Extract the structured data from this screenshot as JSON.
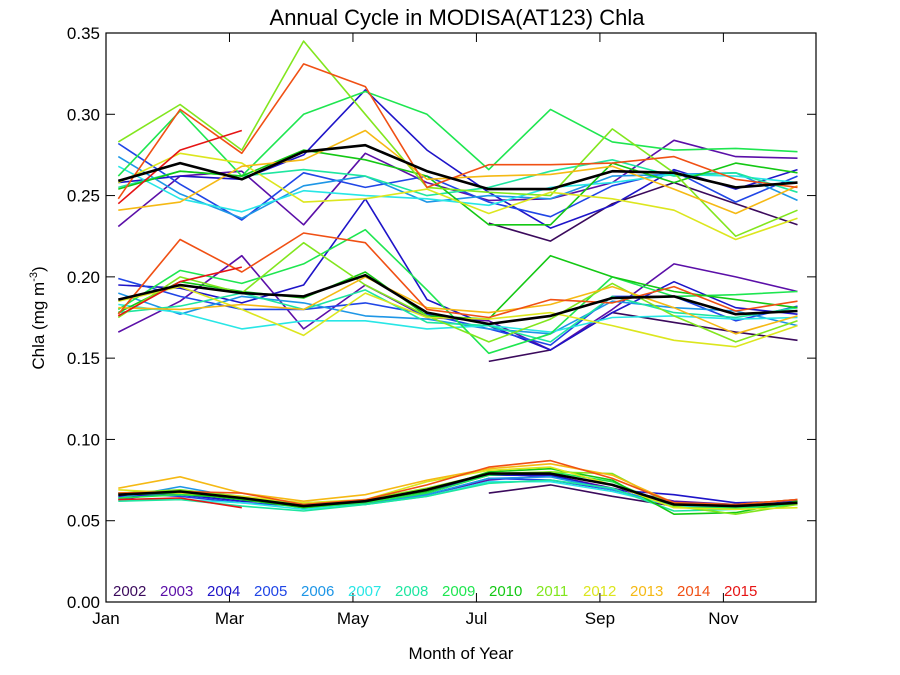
{
  "chart_data": {
    "type": "line",
    "title": "Annual Cycle in MODISA(AT123) Chla",
    "xlabel": "Month of Year",
    "ylabel_main": "Chla (mg m",
    "ylabel_sup": "-3",
    "ylabel_close": ")",
    "ylim": [
      0.0,
      0.35
    ],
    "xlim": [
      1,
      12.5
    ],
    "x": [
      1.2,
      2.2,
      3.2,
      4.2,
      5.2,
      6.2,
      7.2,
      8.2,
      9.2,
      10.2,
      11.2,
      12.2
    ],
    "xticks": [
      {
        "label": "Jan",
        "value": 1
      },
      {
        "label": "Mar",
        "value": 3
      },
      {
        "label": "May",
        "value": 5
      },
      {
        "label": "Jul",
        "value": 7
      },
      {
        "label": "Sep",
        "value": 9
      },
      {
        "label": "Nov",
        "value": 11
      }
    ],
    "yticks": [
      {
        "label": "0.00",
        "value": 0.0
      },
      {
        "label": "0.05",
        "value": 0.05
      },
      {
        "label": "0.10",
        "value": 0.1
      },
      {
        "label": "0.15",
        "value": 0.15
      },
      {
        "label": "0.20",
        "value": 0.2
      },
      {
        "label": "0.25",
        "value": 0.25
      },
      {
        "label": "0.30",
        "value": 0.3
      },
      {
        "label": "0.35",
        "value": 0.35
      }
    ],
    "grid": false,
    "legend_placement": "bottom",
    "series": [
      {
        "name": "2002",
        "color": "#3b0a5c",
        "groups": [
          [
            null,
            null,
            null,
            null,
            null,
            null,
            0.233,
            0.222,
            0.245,
            0.258,
            0.245,
            0.232
          ],
          [
            null,
            null,
            null,
            null,
            null,
            null,
            0.148,
            0.155,
            0.178,
            0.172,
            0.166,
            0.161
          ],
          [
            null,
            null,
            null,
            null,
            null,
            null,
            0.067,
            0.072,
            0.065,
            0.059,
            0.058,
            0.06
          ]
        ]
      },
      {
        "name": "2003",
        "color": "#5b0fa8",
        "groups": [
          [
            0.231,
            0.262,
            0.265,
            0.232,
            0.276,
            0.258,
            0.247,
            0.248,
            0.258,
            0.284,
            0.274,
            0.273
          ],
          [
            0.166,
            0.185,
            0.213,
            0.168,
            0.195,
            0.175,
            0.173,
            0.155,
            0.18,
            0.208,
            0.2,
            0.191
          ],
          [
            0.063,
            0.068,
            0.064,
            0.06,
            0.061,
            0.066,
            0.075,
            0.078,
            0.07,
            0.062,
            0.06,
            0.063
          ]
        ]
      },
      {
        "name": "2004",
        "color": "#1e14c8",
        "groups": [
          [
            0.258,
            0.262,
            0.26,
            0.275,
            0.315,
            0.278,
            0.252,
            0.23,
            0.244,
            0.266,
            0.254,
            0.266
          ],
          [
            0.195,
            0.193,
            0.184,
            0.195,
            0.248,
            0.186,
            0.17,
            0.155,
            0.178,
            0.197,
            0.181,
            0.177
          ],
          [
            0.065,
            0.066,
            0.062,
            0.061,
            0.062,
            0.068,
            0.078,
            0.078,
            0.069,
            0.066,
            0.061,
            0.062
          ]
        ]
      },
      {
        "name": "2005",
        "color": "#2046e6",
        "groups": [
          [
            0.282,
            0.257,
            0.235,
            0.264,
            0.255,
            0.262,
            0.246,
            0.237,
            0.256,
            0.265,
            0.246,
            0.262
          ],
          [
            0.199,
            0.188,
            0.18,
            0.18,
            0.184,
            0.177,
            0.168,
            0.158,
            0.188,
            0.188,
            0.173,
            0.182
          ],
          [
            0.067,
            0.065,
            0.061,
            0.059,
            0.06,
            0.066,
            0.076,
            0.075,
            0.069,
            0.06,
            0.06,
            0.061
          ]
        ]
      },
      {
        "name": "2006",
        "color": "#1e96e6",
        "groups": [
          [
            0.274,
            0.251,
            0.236,
            0.256,
            0.262,
            0.246,
            0.25,
            0.248,
            0.262,
            0.263,
            0.264,
            0.247
          ],
          [
            0.19,
            0.177,
            0.188,
            0.184,
            0.176,
            0.174,
            0.168,
            0.165,
            0.185,
            0.181,
            0.179,
            0.17
          ],
          [
            0.064,
            0.071,
            0.064,
            0.058,
            0.061,
            0.066,
            0.076,
            0.077,
            0.069,
            0.06,
            0.059,
            0.06
          ]
        ]
      },
      {
        "name": "2007",
        "color": "#28e6e6",
        "groups": [
          [
            0.268,
            0.248,
            0.24,
            0.253,
            0.25,
            0.248,
            0.244,
            0.255,
            0.258,
            0.263,
            0.262,
            0.258
          ],
          [
            0.183,
            0.178,
            0.168,
            0.173,
            0.173,
            0.168,
            0.17,
            0.166,
            0.175,
            0.176,
            0.174,
            0.175
          ],
          [
            0.063,
            0.063,
            0.061,
            0.057,
            0.06,
            0.065,
            0.074,
            0.074,
            0.068,
            0.059,
            0.058,
            0.06
          ]
        ]
      },
      {
        "name": "2008",
        "color": "#1ee6a0",
        "groups": [
          [
            0.255,
            0.265,
            0.262,
            0.266,
            0.262,
            0.25,
            0.255,
            0.265,
            0.272,
            0.262,
            0.264,
            0.252
          ],
          [
            0.178,
            0.182,
            0.19,
            0.18,
            0.192,
            0.172,
            0.17,
            0.16,
            0.188,
            0.178,
            0.175,
            0.181
          ],
          [
            0.062,
            0.063,
            0.059,
            0.056,
            0.06,
            0.065,
            0.073,
            0.075,
            0.07,
            0.056,
            0.057,
            0.06
          ]
        ]
      },
      {
        "name": "2009",
        "color": "#1ee650",
        "groups": [
          [
            0.262,
            0.302,
            0.262,
            0.3,
            0.314,
            0.3,
            0.266,
            0.303,
            0.283,
            0.278,
            0.279,
            0.277
          ],
          [
            0.18,
            0.204,
            0.196,
            0.208,
            0.229,
            0.192,
            0.153,
            0.165,
            0.2,
            0.188,
            0.189,
            0.191
          ],
          [
            0.064,
            0.066,
            0.064,
            0.058,
            0.061,
            0.067,
            0.078,
            0.08,
            0.074,
            0.058,
            0.058,
            0.06
          ]
        ]
      },
      {
        "name": "2010",
        "color": "#14c814",
        "groups": [
          [
            0.254,
            0.265,
            0.262,
            0.278,
            0.272,
            0.262,
            0.232,
            0.232,
            0.27,
            0.258,
            0.27,
            0.264
          ],
          [
            0.178,
            0.197,
            0.191,
            0.187,
            0.203,
            0.176,
            0.174,
            0.213,
            0.2,
            0.191,
            0.186,
            0.181
          ],
          [
            0.066,
            0.067,
            0.063,
            0.058,
            0.062,
            0.068,
            0.08,
            0.082,
            0.075,
            0.054,
            0.055,
            0.062
          ]
        ]
      },
      {
        "name": "2011",
        "color": "#82e61e",
        "groups": [
          [
            0.283,
            0.306,
            0.278,
            0.345,
            0.3,
            0.255,
            0.252,
            0.25,
            0.291,
            0.264,
            0.225,
            0.241
          ],
          [
            0.175,
            0.2,
            0.19,
            0.221,
            0.195,
            0.176,
            0.16,
            0.174,
            0.196,
            0.176,
            0.16,
            0.173
          ],
          [
            0.067,
            0.069,
            0.065,
            0.06,
            0.063,
            0.07,
            0.079,
            0.08,
            0.079,
            0.059,
            0.054,
            0.06
          ]
        ]
      },
      {
        "name": "2012",
        "color": "#dce61e",
        "groups": [
          [
            0.258,
            0.276,
            0.27,
            0.246,
            0.248,
            0.254,
            0.239,
            0.252,
            0.248,
            0.241,
            0.223,
            0.236
          ],
          [
            0.185,
            0.194,
            0.18,
            0.164,
            0.19,
            0.175,
            0.174,
            0.178,
            0.17,
            0.161,
            0.157,
            0.17
          ],
          [
            0.069,
            0.067,
            0.065,
            0.061,
            0.063,
            0.074,
            0.081,
            0.083,
            0.072,
            0.058,
            0.057,
            0.058
          ]
        ]
      },
      {
        "name": "2013",
        "color": "#f5b914",
        "groups": [
          [
            0.241,
            0.246,
            0.268,
            0.272,
            0.29,
            0.26,
            0.262,
            0.263,
            0.268,
            0.254,
            0.239,
            0.256
          ],
          [
            0.181,
            0.18,
            0.183,
            0.18,
            0.2,
            0.181,
            0.178,
            0.183,
            0.194,
            0.181,
            0.165,
            0.176
          ],
          [
            0.07,
            0.077,
            0.067,
            0.062,
            0.066,
            0.075,
            0.082,
            0.085,
            0.078,
            0.061,
            0.06,
            0.063
          ]
        ]
      },
      {
        "name": "2014",
        "color": "#f05014",
        "groups": [
          [
            0.248,
            0.303,
            0.276,
            0.331,
            0.317,
            0.255,
            0.269,
            0.269,
            0.27,
            0.274,
            0.26,
            0.255
          ],
          [
            0.177,
            0.223,
            0.203,
            0.227,
            0.221,
            0.18,
            0.175,
            0.186,
            0.184,
            0.194,
            0.179,
            0.185
          ],
          [
            0.067,
            0.068,
            0.067,
            0.06,
            0.063,
            0.072,
            0.083,
            0.087,
            0.076,
            0.061,
            0.06,
            0.063
          ]
        ]
      },
      {
        "name": "2015",
        "color": "#e61414",
        "groups": [
          [
            0.245,
            0.278,
            0.29,
            null,
            null,
            null,
            null,
            null,
            null,
            null,
            null,
            null
          ],
          [
            0.176,
            0.197,
            0.206,
            null,
            null,
            null,
            null,
            null,
            null,
            null,
            null,
            null
          ],
          [
            0.063,
            0.064,
            0.058,
            null,
            null,
            null,
            null,
            null,
            null,
            null,
            null,
            null
          ]
        ]
      },
      {
        "name": "",
        "color": "#000000",
        "mean": true,
        "groups": [
          [
            0.259,
            0.27,
            0.26,
            0.277,
            0.281,
            0.265,
            0.254,
            0.254,
            0.265,
            0.264,
            0.255,
            0.258
          ],
          [
            0.186,
            0.195,
            0.19,
            0.188,
            0.201,
            0.178,
            0.171,
            0.176,
            0.187,
            0.188,
            0.177,
            0.179
          ],
          [
            0.066,
            0.068,
            0.064,
            0.059,
            0.062,
            0.069,
            0.079,
            0.079,
            0.072,
            0.06,
            0.059,
            0.061
          ]
        ]
      }
    ]
  }
}
